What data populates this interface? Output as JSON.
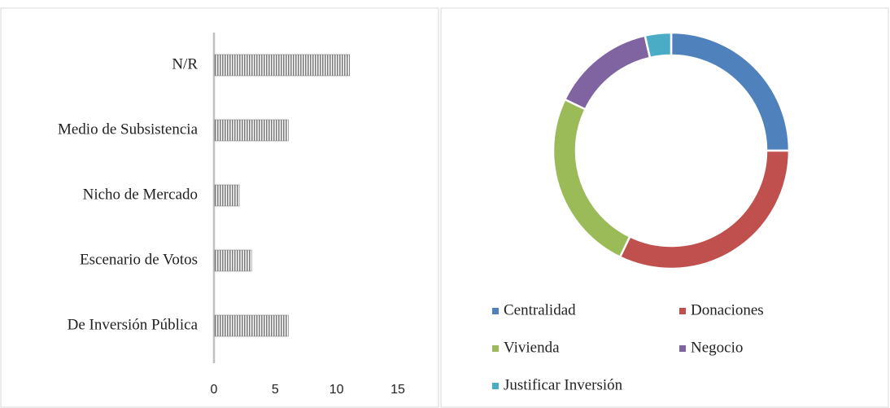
{
  "chart_data": [
    {
      "type": "bar",
      "orientation": "horizontal",
      "categories": [
        "N/R",
        "Medio de Subsistencia",
        "Nicho de Mercado",
        "Escenario de Votos",
        "De  Inversión Pública"
      ],
      "values": [
        11,
        6,
        2,
        3,
        6
      ],
      "color": "#7f7f7f",
      "xlim": [
        0,
        15
      ],
      "xticks": [
        0,
        5,
        10,
        15
      ]
    },
    {
      "type": "donut",
      "categories": [
        "Centralidad",
        "Donaciones",
        "Vivienda",
        "Negocio",
        "Justificar Inversión"
      ],
      "values": [
        7,
        9,
        7,
        4,
        1
      ],
      "colors": [
        "#4f81bd",
        "#c0504d",
        "#9bbb59",
        "#8064a2",
        "#4bacc6"
      ]
    }
  ]
}
